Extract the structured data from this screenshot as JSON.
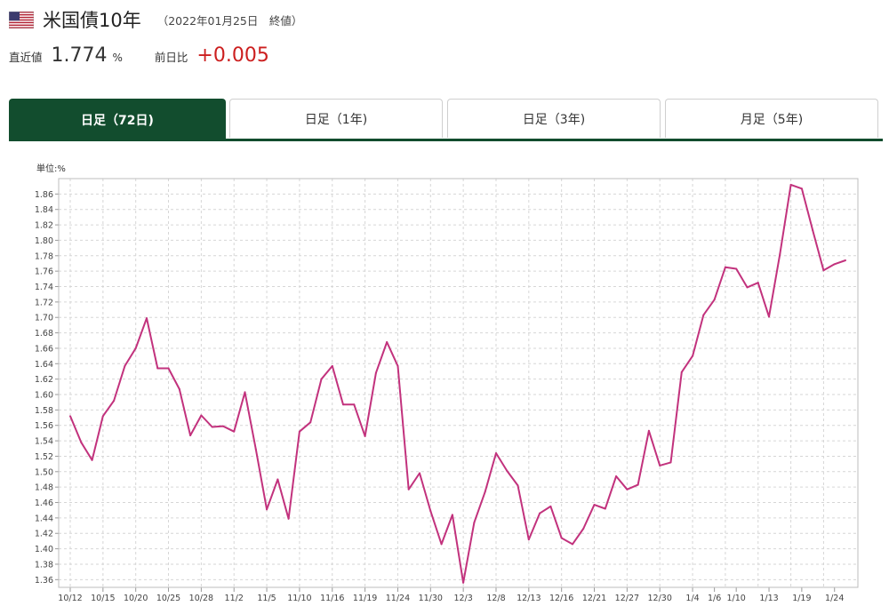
{
  "header": {
    "flag_icon": "us-flag-icon",
    "title": "米国債10年",
    "subtitle": "（2022年01月25日　終値）"
  },
  "quote": {
    "current_label": "直近値",
    "current_value": "1.774",
    "current_unit": "%",
    "change_label": "前日比",
    "change_value": "+0.005",
    "change_color": "#cc1f1f"
  },
  "tabs": [
    {
      "label": "日足（72日)",
      "active": true
    },
    {
      "label": "日足（1年)",
      "active": false
    },
    {
      "label": "日足（3年)",
      "active": false
    },
    {
      "label": "月足（5年)",
      "active": false
    }
  ],
  "colors": {
    "accent": "#124d2e",
    "line": "#c2327d",
    "grid": "#d6d6d6"
  },
  "chart_data": {
    "type": "line",
    "unit_label": "単位:%",
    "ylim": [
      1.35,
      1.88
    ],
    "y_ticks": [
      1.36,
      1.38,
      1.4,
      1.42,
      1.44,
      1.46,
      1.48,
      1.5,
      1.52,
      1.54,
      1.56,
      1.58,
      1.6,
      1.62,
      1.64,
      1.66,
      1.68,
      1.7,
      1.72,
      1.74,
      1.76,
      1.78,
      1.8,
      1.82,
      1.84,
      1.86
    ],
    "x_tick_labels": [
      "10/12",
      "10/15",
      "10/20",
      "10/25",
      "10/28",
      "11/2",
      "11/5",
      "11/10",
      "11/16",
      "11/19",
      "11/24",
      "11/30",
      "12/3",
      "12/8",
      "12/13",
      "12/16",
      "12/21",
      "12/27",
      "12/30",
      "1/4",
      "1/6",
      "1/10",
      "1/13",
      "1/19",
      "1/24"
    ],
    "x_tick_index": [
      0,
      3,
      6,
      9,
      12,
      15,
      18,
      21,
      24,
      27,
      30,
      33,
      36,
      39,
      42,
      45,
      48,
      51,
      54,
      57,
      59,
      61,
      64,
      67,
      70
    ],
    "grid": true,
    "series": [
      {
        "values": [
          1.572,
          1.538,
          1.515,
          1.572,
          1.592,
          1.637,
          1.66,
          1.699,
          1.634,
          1.634,
          1.607,
          1.547,
          1.573,
          1.558,
          1.559,
          1.552,
          1.603,
          1.529,
          1.451,
          1.49,
          1.439,
          1.552,
          1.564,
          1.62,
          1.637,
          1.587,
          1.587,
          1.546,
          1.628,
          1.668,
          1.637,
          1.477,
          1.498,
          1.449,
          1.406,
          1.444,
          1.356,
          1.434,
          1.474,
          1.524,
          1.501,
          1.482,
          1.412,
          1.446,
          1.455,
          1.414,
          1.406,
          1.426,
          1.457,
          1.452,
          1.494,
          1.477,
          1.483,
          1.553,
          1.508,
          1.512,
          1.629,
          1.65,
          1.703,
          1.723,
          1.765,
          1.763,
          1.739,
          1.745,
          1.701,
          1.782,
          1.872,
          1.867,
          1.813,
          1.761,
          1.769,
          1.774
        ]
      }
    ]
  }
}
